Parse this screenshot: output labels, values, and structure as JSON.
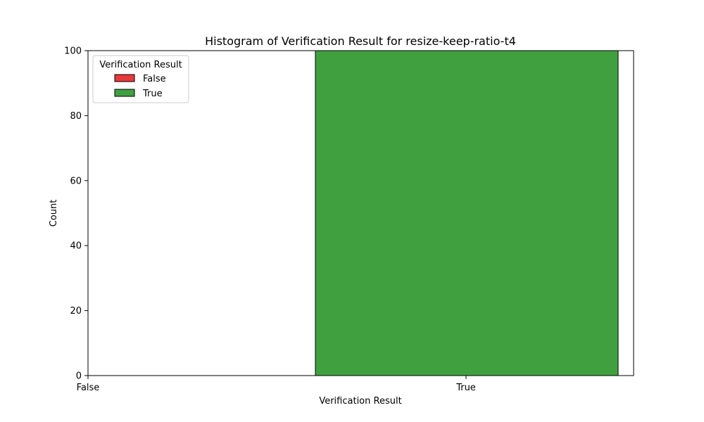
{
  "chart_data": {
    "type": "bar",
    "title": "Histogram of Verification Result for resize-keep-ratio-t4",
    "xlabel": "Verification Result",
    "ylabel": "Count",
    "categories": [
      "False",
      "True"
    ],
    "series": [
      {
        "name": "False",
        "color": "#e8393c",
        "values": [
          0,
          0
        ]
      },
      {
        "name": "True",
        "color": "#40a040",
        "values": [
          0,
          100
        ]
      }
    ],
    "ylim": [
      0,
      100
    ],
    "yticks": [
      0,
      20,
      40,
      60,
      80,
      100
    ],
    "xticks": [
      "False",
      "True"
    ],
    "grid": false,
    "legend": {
      "title": "Verification Result",
      "placement": "top-left",
      "entries": [
        "False",
        "True"
      ]
    }
  }
}
